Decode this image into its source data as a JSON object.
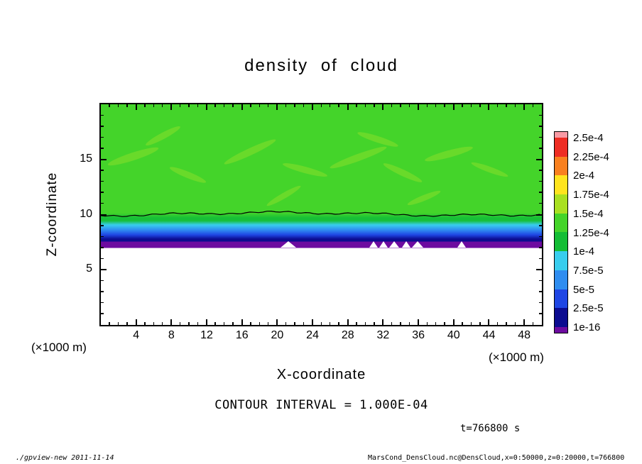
{
  "title": "density of cloud",
  "axes": {
    "xlabel": "X-coordinate",
    "ylabel": "Z-coordinate",
    "x_unit_left": "(×1000 m)",
    "x_unit_right": "(×1000 m)"
  },
  "colorbar": {
    "labels": [
      "2.5e-4",
      "2.25e-4",
      "2e-4",
      "1.75e-4",
      "1.5e-4",
      "1.25e-4",
      "1e-4",
      "7.5e-5",
      "5e-5",
      "2.5e-5",
      "1e-16"
    ],
    "colors": [
      "#f89aa4",
      "#ee2d24",
      "#f9801f",
      "#ffe41e",
      "#a9e021",
      "#44d42a",
      "#14bd35",
      "#38cdee",
      "#2f8df0",
      "#1f46e4",
      "#0c0c90",
      "#6d0ba0"
    ]
  },
  "annotations": {
    "contour_interval": "CONTOUR INTERVAL = 1.000E-04",
    "time": "t=766800 s",
    "footer_left": "./gpview-new  2011-11-14",
    "footer_right": "MarsCond_DensCloud.nc@DensCloud,x=0:50000,z=0:20000,t=766800"
  },
  "chart_data": {
    "type": "heatmap",
    "title": "density of cloud",
    "xlabel": "X-coordinate",
    "ylabel": "Z-coordinate",
    "x_unit": "×1000 m",
    "y_unit": "×1000 m",
    "xlim": [
      0,
      50
    ],
    "ylim": [
      0,
      20
    ],
    "x_ticks": [
      4,
      8,
      12,
      16,
      20,
      24,
      28,
      32,
      36,
      40,
      44,
      48
    ],
    "y_ticks": [
      5,
      10,
      15
    ],
    "grid": false,
    "legend_position": "right-colorbar",
    "contour_interval": 0.0001,
    "time_seconds": 766800,
    "levels": [
      1e-16,
      2.5e-05,
      5e-05,
      7.5e-05,
      0.0001,
      0.000125,
      0.00015,
      0.000175,
      0.0002,
      0.000225,
      0.00025
    ],
    "contour_line": {
      "level": 0.0001,
      "z_mean": 10.0,
      "description": "single wavy black contour near z=10 spanning the full x range"
    },
    "layers": [
      {
        "z_range": [
          10.0,
          20.0
        ],
        "approx_value": 0.000135,
        "band": "1.25e-4 to 1.5e-4",
        "color": "#44d42a"
      },
      {
        "z_range": [
          9.4,
          10.0
        ],
        "approx_value": 0.00011,
        "band": "1e-4 to 1.25e-4",
        "color": "#14bd35"
      },
      {
        "z_range": [
          9.0,
          9.4
        ],
        "approx_value": 8.5e-05,
        "band": "7.5e-5 to 1e-4",
        "color": "#38cdee"
      },
      {
        "z_range": [
          8.5,
          9.0
        ],
        "approx_value": 6e-05,
        "band": "5e-5 to 7.5e-5",
        "color": "#2f8df0"
      },
      {
        "z_range": [
          8.0,
          8.5
        ],
        "approx_value": 3.5e-05,
        "band": "2.5e-5 to 5e-5",
        "color": "#1f46e4"
      },
      {
        "z_range": [
          7.6,
          8.0
        ],
        "approx_value": 1e-05,
        "band": "1e-16 to 2.5e-5",
        "color": "#0c0c90"
      },
      {
        "z_range": [
          7.0,
          7.6
        ],
        "approx_value": 1e-16,
        "band": "below 1e-16",
        "color": "#6d0ba0"
      },
      {
        "z_range": [
          0.0,
          7.0
        ],
        "approx_value": null,
        "band": "no data (white)",
        "color": "#ffffff"
      }
    ],
    "gaps": [
      {
        "x": 21.3,
        "w": 1.8
      },
      {
        "x": 30.9,
        "w": 1.0
      },
      {
        "x": 32.1,
        "w": 1.0
      },
      {
        "x": 33.3,
        "w": 1.2
      },
      {
        "x": 34.6,
        "w": 1.0
      },
      {
        "x": 36.0,
        "w": 1.4
      },
      {
        "x": 40.9,
        "w": 1.0
      }
    ]
  }
}
